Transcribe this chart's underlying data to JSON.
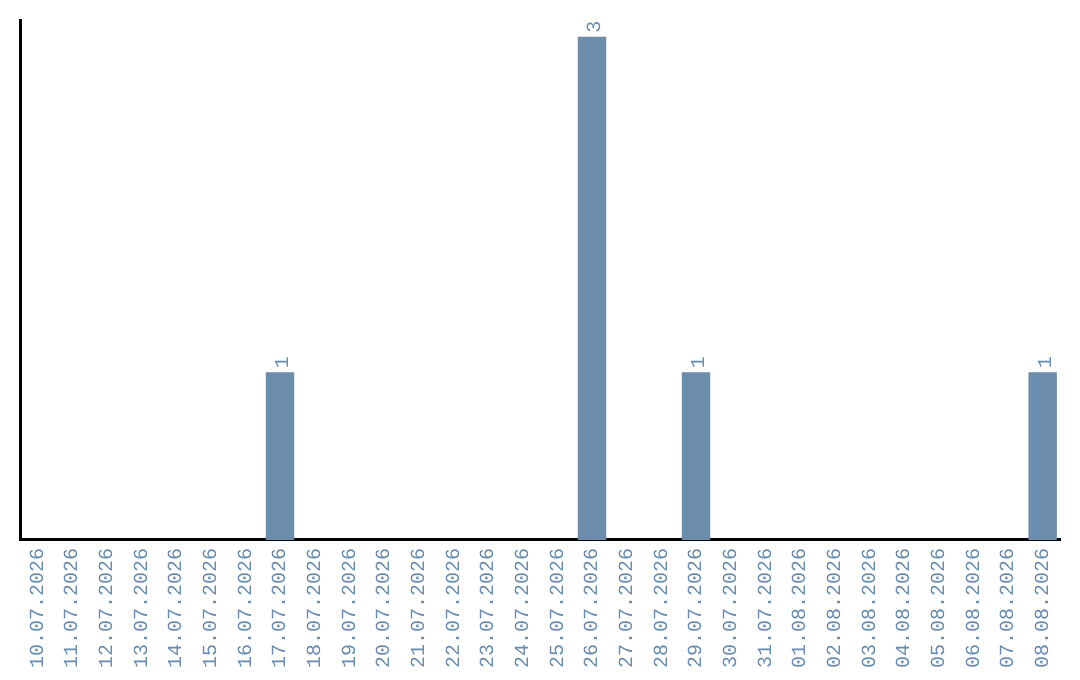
{
  "chart_data": {
    "type": "bar",
    "categories": [
      "10.07.2026",
      "11.07.2026",
      "12.07.2026",
      "13.07.2026",
      "14.07.2026",
      "15.07.2026",
      "16.07.2026",
      "17.07.2026",
      "18.07.2026",
      "19.07.2026",
      "20.07.2026",
      "21.07.2026",
      "22.07.2026",
      "23.07.2026",
      "24.07.2026",
      "25.07.2026",
      "26.07.2026",
      "27.07.2026",
      "28.07.2026",
      "29.07.2026",
      "30.07.2026",
      "31.07.2026",
      "01.08.2026",
      "02.08.2026",
      "03.08.2026",
      "04.08.2026",
      "05.08.2026",
      "06.08.2026",
      "07.08.2026",
      "08.08.2026"
    ],
    "values": [
      0,
      0,
      0,
      0,
      0,
      0,
      0,
      1,
      0,
      0,
      0,
      0,
      0,
      0,
      0,
      0,
      3,
      0,
      0,
      1,
      0,
      0,
      0,
      0,
      0,
      0,
      0,
      0,
      0,
      1
    ],
    "value_labels": [
      null,
      null,
      null,
      null,
      null,
      null,
      null,
      "1",
      null,
      null,
      null,
      null,
      null,
      null,
      null,
      null,
      "3",
      null,
      null,
      "1",
      null,
      null,
      null,
      null,
      null,
      null,
      null,
      null,
      null,
      "1"
    ],
    "color": "#6b8cab",
    "ylim": [
      0,
      3.1
    ],
    "tick_labels": "x",
    "grid": false,
    "legend": false
  }
}
